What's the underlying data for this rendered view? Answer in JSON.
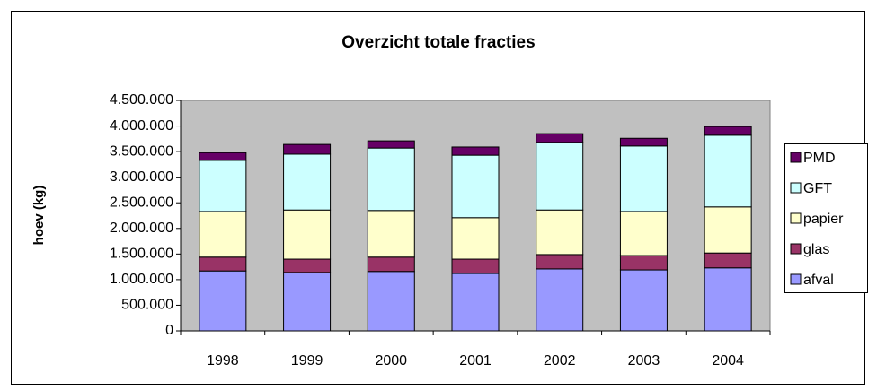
{
  "chart_data": {
    "type": "stacked_bar",
    "title": "Overzicht totale fracties",
    "y_label": "hoev (kg)",
    "categories": [
      "1998",
      "1999",
      "2000",
      "2001",
      "2002",
      "2003",
      "2004"
    ],
    "series": [
      {
        "name": "afval",
        "color": "#9999ff",
        "values": [
          1170000,
          1140000,
          1160000,
          1120000,
          1210000,
          1190000,
          1230000
        ]
      },
      {
        "name": "glas",
        "color": "#993366",
        "values": [
          270000,
          260000,
          280000,
          280000,
          280000,
          280000,
          290000
        ]
      },
      {
        "name": "papier",
        "color": "#ffffcc",
        "values": [
          890000,
          960000,
          910000,
          810000,
          870000,
          860000,
          900000
        ]
      },
      {
        "name": "GFT",
        "color": "#ccffff",
        "values": [
          1000000,
          1090000,
          1220000,
          1220000,
          1320000,
          1280000,
          1400000
        ]
      },
      {
        "name": "PMD",
        "color": "#660066",
        "values": [
          150000,
          190000,
          140000,
          160000,
          170000,
          150000,
          170000
        ]
      }
    ],
    "ylim": [
      0,
      4500000
    ],
    "yticks": [
      0,
      {
        "value": 500000,
        "label": "500.000"
      },
      {
        "value": 1000000,
        "label": "1.000.000"
      },
      {
        "value": 1500000,
        "label": "1.500.000"
      },
      {
        "value": 2000000,
        "label": "2.000.000"
      },
      {
        "value": 2500000,
        "label": "2.500.000"
      },
      {
        "value": 3000000,
        "label": "3.000.000"
      },
      {
        "value": 3500000,
        "label": "3.500.000"
      },
      {
        "value": 4000000,
        "label": "4.000.000"
      },
      {
        "value": 4500000,
        "label": "4.500.000"
      }
    ],
    "legend": "right"
  }
}
